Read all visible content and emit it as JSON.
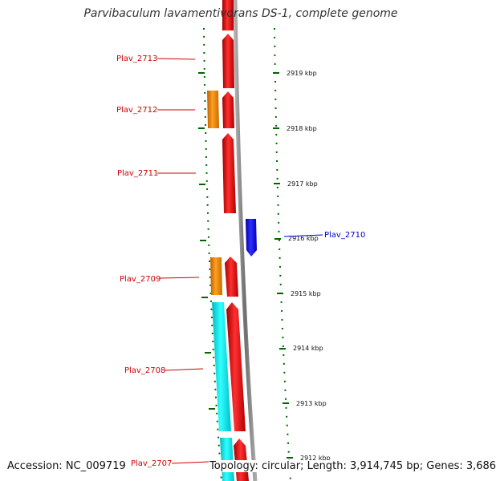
{
  "title": "Parvibaculum lavamentivorans DS-1, complete genome",
  "accession": "Accession: NC_009719",
  "topology": "Topology: circular; Length: 3,914,745 bp; Genes: 3,686",
  "colors": {
    "forward": "#ff0000",
    "reverse": "#0000ee",
    "orange": "#ff8c00",
    "cyan": "#00e5ee",
    "ticks": "#006400",
    "label_red": "#cc0000",
    "label_blue": "#0000cc",
    "backbone": "#8c8c8c"
  },
  "ticks": [
    {
      "label": "2919 kbp"
    },
    {
      "label": "2918 kbp"
    },
    {
      "label": "2917 kbp"
    },
    {
      "label": "2916 kbp"
    },
    {
      "label": "2915 kbp"
    },
    {
      "label": "2914 kbp"
    },
    {
      "label": "2913 kbp"
    },
    {
      "label": "2912 kbp"
    }
  ],
  "genes": [
    {
      "label": "Plav_2713",
      "color": "label_red"
    },
    {
      "label": "Plav_2712",
      "color": "label_red"
    },
    {
      "label": "Plav_2711",
      "color": "label_red"
    },
    {
      "label": "Plav_2710",
      "color": "label_blue"
    },
    {
      "label": "Plav_2709",
      "color": "label_red"
    },
    {
      "label": "Plav_2708",
      "color": "label_red"
    },
    {
      "label": "Plav_2707",
      "color": "label_red"
    }
  ]
}
